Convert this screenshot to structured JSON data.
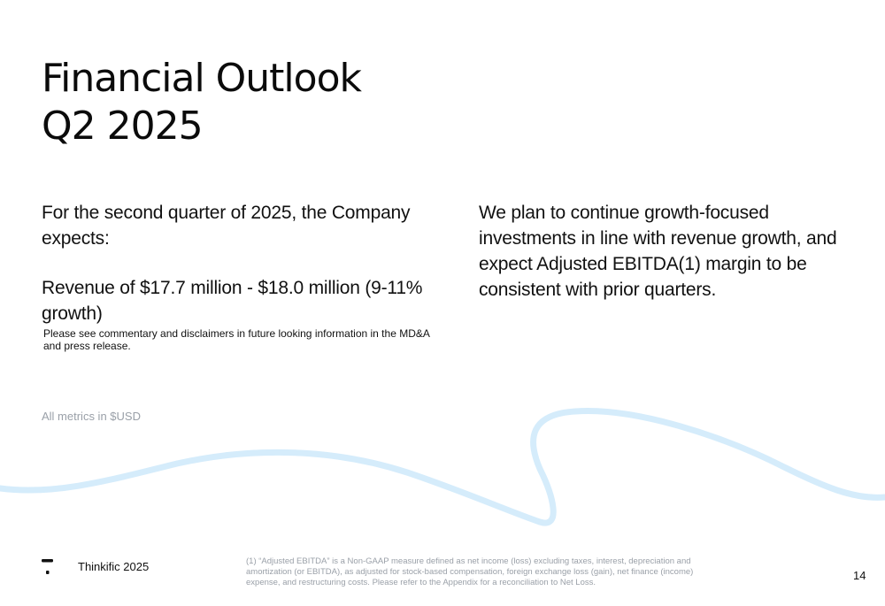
{
  "slide": {
    "title_line1": "Financial Outlook",
    "title_line2": "Q2 2025",
    "left": {
      "intro": "For the second quarter of 2025, the Company expects:",
      "revenue": "Revenue of $17.7 million - $18.0 million (9-11% growth)"
    },
    "right": {
      "text": "We plan to continue growth-focused investments in line with revenue growth, and expect Adjusted EBITDA(1) margin to be consistent with prior quarters."
    },
    "disclaimer": "Please see commentary and disclaimers in future looking information in the MD&A and press release.",
    "metrics_note": "All metrics in $USD"
  },
  "footer": {
    "brand": "Thinkific 2025",
    "footnote": "(1)   “Adjusted EBITDA” is a Non-GAAP measure defined as net income (loss) excluding taxes, interest, depreciation and amortization (or EBITDA), as adjusted for stock-based compensation, foreign exchange loss (gain), net finance (income) expense, and restructuring costs. Please refer to the Appendix for a reconciliation to Net Loss.",
    "page_number": "14"
  },
  "colors": {
    "wave": "#d5ecfb",
    "muted_text": "#9aa0a8"
  },
  "icons": {
    "logo": "thinkific-logo-icon"
  }
}
